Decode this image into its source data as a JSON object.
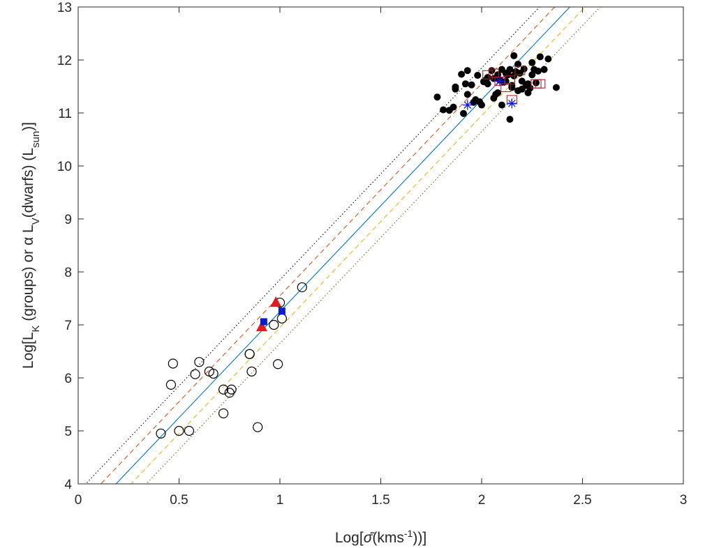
{
  "chart_data": {
    "type": "scatter",
    "xlabel": {
      "prefix": "Log[",
      "symbol": "σ̄",
      "mid": "(kms",
      "sup": "-1",
      "suffix": "))]"
    },
    "ylabel": {
      "p1": "Log[L",
      "s1": "K",
      "p2": " (groups) or α L",
      "s2": "V",
      "p3": "(dwarfs) (L",
      "s3": "sun",
      "p4": ")]"
    },
    "xlim": [
      0,
      3
    ],
    "ylim": [
      4,
      13
    ],
    "xticks": [
      0,
      0.5,
      1,
      1.5,
      2,
      2.5,
      3
    ],
    "yticks": [
      4,
      5,
      6,
      7,
      8,
      9,
      10,
      11,
      12,
      13
    ],
    "xtick_labels": [
      "0",
      "0.5",
      "1",
      "1.5",
      "2",
      "2.5",
      "3"
    ],
    "ytick_labels": [
      "4",
      "5",
      "6",
      "7",
      "8",
      "9",
      "10",
      "11",
      "12",
      "13"
    ],
    "grid": false,
    "box": true,
    "lines": [
      {
        "style": "solid",
        "color": "#0072BD",
        "slope": 4,
        "intercept": 3.25
      },
      {
        "style": "dashed",
        "color": "#D95319",
        "slope": 4,
        "intercept": 3.55
      },
      {
        "style": "dashed",
        "color": "#EDB120",
        "slope": 4,
        "intercept": 2.95
      },
      {
        "style": "dotted",
        "color": "#000000",
        "slope": 4,
        "intercept": 3.85
      },
      {
        "style": "dotted",
        "color": "#7E5A2A",
        "slope": 4,
        "intercept": 2.65
      }
    ],
    "series": [
      {
        "marker": "open-circle",
        "color": "#000000",
        "points": [
          [
            0.41,
            4.95
          ],
          [
            0.47,
            6.27
          ],
          [
            0.46,
            5.87
          ],
          [
            0.5,
            5.0
          ],
          [
            0.55,
            5.0
          ],
          [
            0.58,
            6.07
          ],
          [
            0.6,
            6.3
          ],
          [
            0.65,
            6.12
          ],
          [
            0.67,
            6.08
          ],
          [
            0.72,
            5.78
          ],
          [
            0.72,
            5.33
          ],
          [
            0.75,
            5.72
          ],
          [
            0.76,
            5.78
          ],
          [
            0.85,
            6.45
          ],
          [
            0.85,
            6.45
          ],
          [
            0.86,
            6.12
          ],
          [
            0.89,
            5.07
          ],
          [
            0.97,
            7.0
          ],
          [
            0.99,
            6.26
          ],
          [
            1.0,
            7.42
          ],
          [
            1.01,
            7.12
          ],
          [
            1.11,
            7.71
          ]
        ]
      },
      {
        "marker": "filled-triangle",
        "color": "#E01B24",
        "points": [
          [
            0.98,
            7.42
          ],
          [
            0.91,
            6.96
          ]
        ]
      },
      {
        "marker": "filled-square",
        "color": "#0A1EC8",
        "points": [
          [
            0.92,
            7.06
          ],
          [
            1.01,
            7.26
          ]
        ]
      },
      {
        "marker": "filled-circle",
        "color": "#000000",
        "points": [
          [
            1.78,
            11.3
          ],
          [
            1.81,
            11.06
          ],
          [
            1.84,
            11.05
          ],
          [
            1.86,
            11.11
          ],
          [
            1.87,
            11.45
          ],
          [
            1.87,
            11.49
          ],
          [
            1.9,
            11.73
          ],
          [
            1.91,
            10.99
          ],
          [
            1.92,
            11.55
          ],
          [
            1.93,
            11.8
          ],
          [
            1.93,
            11.35
          ],
          [
            1.95,
            11.53
          ],
          [
            1.96,
            11.2
          ],
          [
            1.97,
            11.25
          ],
          [
            1.98,
            11.71
          ],
          [
            1.99,
            11.21
          ],
          [
            2.0,
            11.15
          ],
          [
            2.01,
            11.59
          ],
          [
            2.02,
            11.62
          ],
          [
            2.03,
            11.67
          ],
          [
            2.05,
            11.8
          ],
          [
            2.06,
            11.65
          ],
          [
            2.07,
            11.35
          ],
          [
            2.08,
            11.38
          ],
          [
            2.08,
            11.72
          ],
          [
            2.09,
            11.62
          ],
          [
            2.1,
            11.15
          ],
          [
            2.1,
            11.82
          ],
          [
            2.11,
            11.58
          ],
          [
            2.12,
            11.6
          ],
          [
            2.13,
            11.72
          ],
          [
            2.14,
            11.82
          ],
          [
            2.14,
            10.88
          ],
          [
            2.15,
            11.48
          ],
          [
            2.15,
            11.52
          ],
          [
            2.16,
            11.7
          ],
          [
            2.16,
            12.08
          ],
          [
            2.17,
            11.78
          ],
          [
            2.18,
            11.92
          ],
          [
            2.18,
            11.42
          ],
          [
            2.19,
            11.75
          ],
          [
            2.2,
            11.6
          ],
          [
            2.21,
            11.83
          ],
          [
            2.22,
            11.52
          ],
          [
            2.23,
            11.38
          ],
          [
            2.23,
            11.55
          ],
          [
            2.24,
            11.47
          ],
          [
            2.25,
            11.72
          ],
          [
            2.26,
            11.82
          ],
          [
            2.27,
            11.57
          ],
          [
            2.28,
            11.79
          ],
          [
            2.29,
            12.06
          ],
          [
            2.31,
            11.82
          ],
          [
            2.33,
            12.02
          ],
          [
            2.37,
            11.48
          ],
          [
            2.03,
            11.55
          ],
          [
            2.12,
            11.75
          ],
          [
            2.2,
            11.45
          ],
          [
            2.06,
            11.28
          ],
          [
            2.25,
            11.95
          ]
        ]
      },
      {
        "marker": "open-square",
        "color": "#A4262C",
        "points": [
          [
            2.03,
            11.72
          ],
          [
            2.06,
            11.75
          ],
          [
            2.09,
            11.6
          ],
          [
            2.12,
            11.48
          ],
          [
            2.14,
            11.62
          ],
          [
            2.15,
            11.25
          ],
          [
            2.19,
            11.8
          ],
          [
            2.27,
            11.55
          ],
          [
            2.29,
            11.55
          ]
        ]
      },
      {
        "marker": "star",
        "color": "#1A1AC8",
        "points": [
          [
            1.93,
            11.15
          ],
          [
            2.09,
            11.6
          ],
          [
            2.15,
            11.18
          ]
        ]
      }
    ]
  }
}
